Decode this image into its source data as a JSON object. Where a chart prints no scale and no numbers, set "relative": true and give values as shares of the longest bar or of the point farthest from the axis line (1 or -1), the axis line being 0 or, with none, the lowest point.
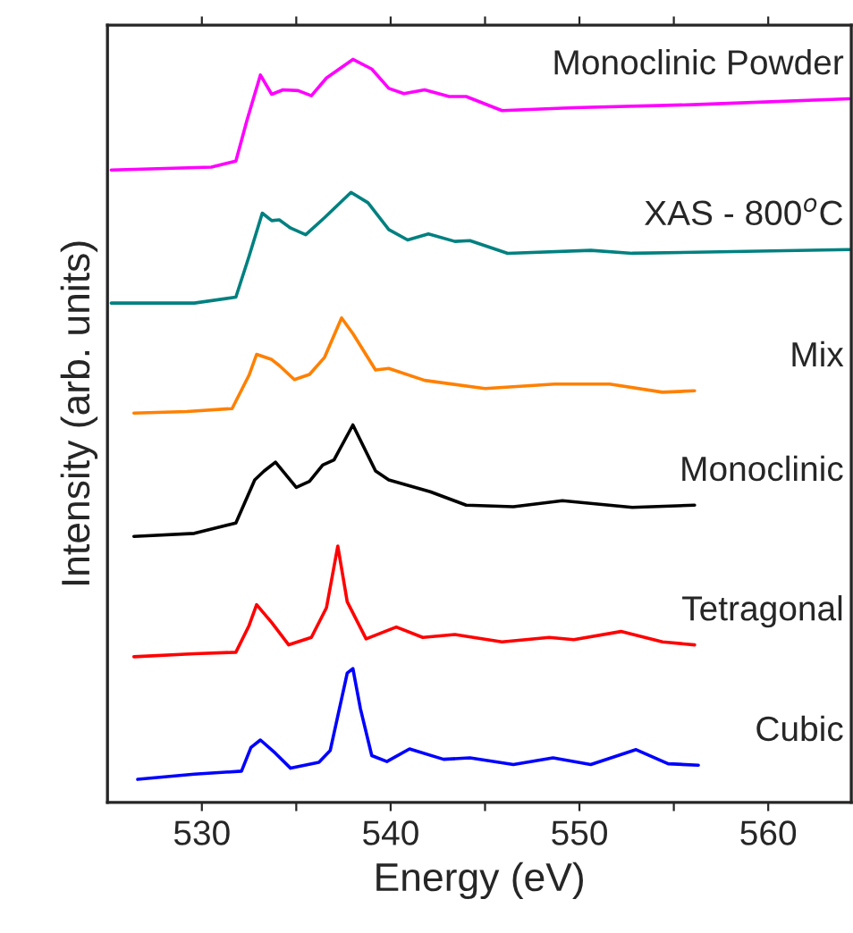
{
  "chart_data": {
    "type": "line",
    "relative": true,
    "xlabel": "Energy (eV)",
    "ylabel": "Intensity (arb. units)",
    "xlim": [
      525,
      564.4
    ],
    "xticks": [
      530,
      {
        "value": 535,
        "label": null
      },
      540,
      {
        "value": 545,
        "label": null
      },
      550,
      {
        "value": 555,
        "label": null
      },
      560
    ],
    "tick_labels": "x",
    "line_style": "solid",
    "marker": "none",
    "series": [
      {
        "name": "Monoclinic Powder",
        "color": "#ff00ff",
        "x": [
          525.2,
          530.5,
          531.8,
          532.4,
          533.1,
          533.7,
          534.3,
          535.1,
          535.8,
          536.6,
          538.0,
          539.0,
          539.9,
          540.7,
          541.8,
          543.1,
          544.0,
          545.9,
          549.7,
          556.0,
          564.3
        ],
        "values": [
          0.851,
          0.855,
          0.863,
          0.919,
          0.979,
          0.953,
          0.959,
          0.958,
          0.951,
          0.975,
          1.0,
          0.987,
          0.961,
          0.954,
          0.959,
          0.95,
          0.95,
          0.931,
          0.935,
          0.939,
          0.947
        ]
      },
      {
        "name": "XAS - 800$^{o}$C",
        "color": "#008080",
        "x": [
          525.2,
          529.6,
          531.8,
          532.5,
          533.2,
          533.7,
          534.1,
          534.7,
          535.5,
          536.5,
          537.9,
          538.8,
          539.9,
          540.9,
          542.0,
          543.4,
          544.2,
          546.2,
          550.6,
          552.8,
          564.3
        ],
        "values": [
          0.672,
          0.672,
          0.68,
          0.735,
          0.793,
          0.783,
          0.784,
          0.773,
          0.764,
          0.787,
          0.821,
          0.807,
          0.771,
          0.757,
          0.765,
          0.755,
          0.756,
          0.739,
          0.743,
          0.739,
          0.744
        ]
      },
      {
        "name": "Mix",
        "color": "#ff8000",
        "x": [
          526.4,
          529.2,
          531.6,
          532.5,
          532.9,
          533.7,
          534.1,
          534.9,
          535.7,
          536.5,
          537.4,
          538.0,
          539.2,
          539.9,
          541.8,
          545.0,
          548.7,
          551.6,
          554.4,
          556.1
        ],
        "values": [
          0.524,
          0.526,
          0.53,
          0.575,
          0.603,
          0.596,
          0.588,
          0.569,
          0.576,
          0.599,
          0.652,
          0.631,
          0.582,
          0.584,
          0.568,
          0.557,
          0.563,
          0.563,
          0.552,
          0.554
        ]
      },
      {
        "name": "Monoclinic",
        "color": "#000000",
        "x": [
          526.4,
          529.6,
          531.8,
          532.8,
          533.3,
          533.9,
          535.0,
          535.7,
          536.4,
          537.0,
          538.0,
          539.2,
          539.9,
          542.1,
          544.0,
          546.5,
          549.1,
          552.8,
          556.1
        ],
        "values": [
          0.358,
          0.362,
          0.376,
          0.434,
          0.446,
          0.458,
          0.424,
          0.432,
          0.454,
          0.461,
          0.508,
          0.446,
          0.434,
          0.418,
          0.4,
          0.398,
          0.406,
          0.397,
          0.4
        ]
      },
      {
        "name": "Tetragonal",
        "color": "#ff0000",
        "x": [
          526.4,
          529.6,
          531.8,
          532.5,
          532.9,
          533.7,
          534.6,
          535.8,
          536.6,
          537.2,
          537.7,
          538.7,
          540.3,
          541.7,
          543.4,
          545.9,
          548.4,
          549.7,
          552.2,
          554.4,
          556.1
        ],
        "values": [
          0.196,
          0.2,
          0.202,
          0.238,
          0.266,
          0.242,
          0.212,
          0.222,
          0.262,
          0.345,
          0.27,
          0.22,
          0.236,
          0.222,
          0.226,
          0.216,
          0.222,
          0.219,
          0.23,
          0.216,
          0.212
        ]
      },
      {
        "name": "Cubic",
        "color": "#0000ff",
        "x": [
          526.6,
          529.6,
          532.1,
          532.6,
          533.1,
          533.9,
          534.7,
          536.2,
          536.8,
          537.7,
          538.0,
          538.4,
          539.0,
          539.8,
          541.0,
          542.8,
          544.2,
          546.5,
          548.6,
          550.6,
          553.0,
          554.7,
          556.3
        ],
        "values": [
          0.031,
          0.038,
          0.042,
          0.074,
          0.084,
          0.066,
          0.046,
          0.054,
          0.07,
          0.174,
          0.18,
          0.126,
          0.063,
          0.055,
          0.072,
          0.058,
          0.06,
          0.051,
          0.06,
          0.051,
          0.071,
          0.052,
          0.05
        ]
      }
    ]
  }
}
